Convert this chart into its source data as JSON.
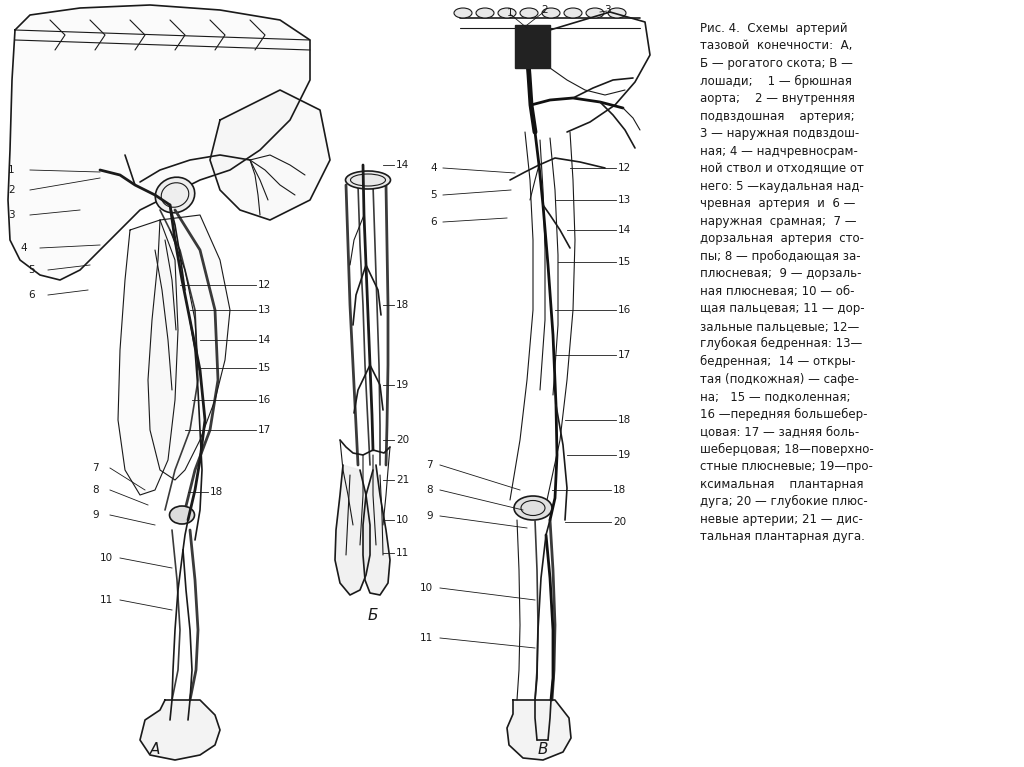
{
  "title": "Рис. 4.  Схемы  артерий\nтазовой  конечности:  А,\nБ — рогатого скота; В —\nлошади;    1 — брюшная\nаорта;    2 — внутренняя\nподвздошная    артерия;\n3 — наружная подвздош-\nная; 4 — надчревносрам-\nной ствол и отходящие от\nнего: 5 —каудальная над-\nчревная  артерия  и  6 —\nнаружная  срамная;  7 —\nдорзальная  артерия  сто-\nпы; 8 — прободающая за-\nплюсневая;  9 — дорзаль-\nная плюсневая; 10 — об-\nщая пальцевая; 11 — дор-\nзальные пальцевые; 12—\nглубокая бедренная: 13—\nбедренная;  14 — откры-\nтая (подкожная) — сафе-\nна;   15 — подколенная;\n16 —передняя большебер-\nцовая: 17 — задняя боль-\nшеберцовая; 18—поверхно-\nстные плюсневые; 19—про-\nксимальная    плантарная\nдуга; 20 — глубокие плюс-\nневые артерии; 21 — дис-\nтальная плантарная дуга.",
  "bg_color": "#ffffff",
  "label_A": "А",
  "label_B": "Б",
  "label_V": "В",
  "fig_width": 10.24,
  "fig_height": 7.67,
  "dpi": 100
}
